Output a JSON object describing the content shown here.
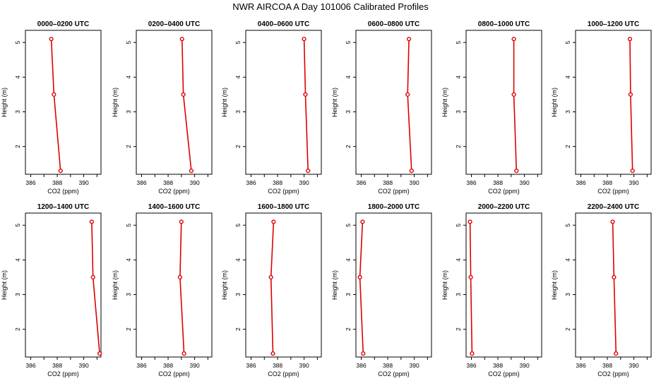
{
  "title": "NWR AIRCOA A  Day 101006  Calibrated Profiles",
  "colors": {
    "line": "#dd0000",
    "marker": "#dd0000",
    "axis": "#000000"
  },
  "chart_data": [
    {
      "type": "line",
      "title": "0000–0200 UTC",
      "xlabel": "CO2 (ppm)",
      "ylabel": "Height (m)",
      "xlim": [
        385.6,
        391.3
      ],
      "ylim": [
        1.2,
        5.35
      ],
      "xticks": [
        386,
        388,
        390
      ],
      "xtick_labels": [
        "386",
        "388",
        "390"
      ],
      "yticks": [
        2,
        3,
        4,
        5
      ],
      "ytick_labels": [
        "2",
        "3",
        "4",
        "5"
      ],
      "points": [
        {
          "height": 1.3,
          "co2": 388.25
        },
        {
          "height": 3.5,
          "co2": 387.75
        },
        {
          "height": 5.1,
          "co2": 387.55
        }
      ]
    },
    {
      "type": "line",
      "title": "0200–0400 UTC",
      "xlabel": "CO2 (ppm)",
      "ylabel": "Height (m)",
      "xlim": [
        385.6,
        391.3
      ],
      "ylim": [
        1.2,
        5.35
      ],
      "xticks": [
        386,
        388,
        390
      ],
      "xtick_labels": [
        "386",
        "388",
        "390"
      ],
      "yticks": [
        2,
        3,
        4,
        5
      ],
      "ytick_labels": [
        "2",
        "3",
        "4",
        "5"
      ],
      "points": [
        {
          "height": 1.3,
          "co2": 389.75
        },
        {
          "height": 3.5,
          "co2": 389.15
        },
        {
          "height": 5.1,
          "co2": 389.05
        }
      ]
    },
    {
      "type": "line",
      "title": "0400–0600 UTC",
      "xlabel": "CO2 (ppm)",
      "ylabel": "Height (m)",
      "xlim": [
        385.6,
        391.3
      ],
      "ylim": [
        1.2,
        5.35
      ],
      "xticks": [
        386,
        388,
        390
      ],
      "xtick_labels": [
        "386",
        "388",
        "390"
      ],
      "yticks": [
        2,
        3,
        4,
        5
      ],
      "ytick_labels": [
        "2",
        "3",
        "4",
        "5"
      ],
      "points": [
        {
          "height": 1.3,
          "co2": 390.3
        },
        {
          "height": 3.5,
          "co2": 390.1
        },
        {
          "height": 5.1,
          "co2": 390.0
        }
      ]
    },
    {
      "type": "line",
      "title": "0600–0800 UTC",
      "xlabel": "CO2 (ppm)",
      "ylabel": "Height (m)",
      "xlim": [
        385.6,
        391.3
      ],
      "ylim": [
        1.2,
        5.35
      ],
      "xticks": [
        386,
        388,
        390
      ],
      "xtick_labels": [
        "386",
        "388",
        "390"
      ],
      "yticks": [
        2,
        3,
        4,
        5
      ],
      "ytick_labels": [
        "2",
        "3",
        "4",
        "5"
      ],
      "points": [
        {
          "height": 1.3,
          "co2": 389.8
        },
        {
          "height": 3.5,
          "co2": 389.5
        },
        {
          "height": 5.1,
          "co2": 389.6
        }
      ]
    },
    {
      "type": "line",
      "title": "0800–1000 UTC",
      "xlabel": "CO2 (ppm)",
      "ylabel": "Height (m)",
      "xlim": [
        385.6,
        391.3
      ],
      "ylim": [
        1.2,
        5.35
      ],
      "xticks": [
        386,
        388,
        390
      ],
      "xtick_labels": [
        "386",
        "388",
        "390"
      ],
      "yticks": [
        2,
        3,
        4,
        5
      ],
      "ytick_labels": [
        "2",
        "3",
        "4",
        "5"
      ],
      "points": [
        {
          "height": 1.3,
          "co2": 389.4
        },
        {
          "height": 3.5,
          "co2": 389.2
        },
        {
          "height": 5.1,
          "co2": 389.2
        }
      ]
    },
    {
      "type": "line",
      "title": "1000–1200 UTC",
      "xlabel": "CO2 (ppm)",
      "ylabel": "Height (m)",
      "xlim": [
        385.6,
        391.3
      ],
      "ylim": [
        1.2,
        5.35
      ],
      "xticks": [
        386,
        388,
        390
      ],
      "xtick_labels": [
        "386",
        "388",
        "390"
      ],
      "yticks": [
        2,
        3,
        4,
        5
      ],
      "ytick_labels": [
        "2",
        "3",
        "4",
        "5"
      ],
      "points": [
        {
          "height": 1.3,
          "co2": 389.9
        },
        {
          "height": 3.5,
          "co2": 389.75
        },
        {
          "height": 5.1,
          "co2": 389.7
        }
      ]
    },
    {
      "type": "line",
      "title": "1200–1400 UTC",
      "xlabel": "CO2 (ppm)",
      "ylabel": "Height (m)",
      "xlim": [
        385.6,
        391.3
      ],
      "ylim": [
        1.2,
        5.35
      ],
      "xticks": [
        386,
        388,
        390
      ],
      "xtick_labels": [
        "386",
        "388",
        "390"
      ],
      "yticks": [
        2,
        3,
        4,
        5
      ],
      "ytick_labels": [
        "2",
        "3",
        "4",
        "5"
      ],
      "points": [
        {
          "height": 1.3,
          "co2": 391.2
        },
        {
          "height": 3.5,
          "co2": 390.7
        },
        {
          "height": 5.1,
          "co2": 390.6
        }
      ]
    },
    {
      "type": "line",
      "title": "1400–1600 UTC",
      "xlabel": "CO2 (ppm)",
      "ylabel": "Height (m)",
      "xlim": [
        385.6,
        391.3
      ],
      "ylim": [
        1.2,
        5.35
      ],
      "xticks": [
        386,
        388,
        390
      ],
      "xtick_labels": [
        "386",
        "388",
        "390"
      ],
      "yticks": [
        2,
        3,
        4,
        5
      ],
      "ytick_labels": [
        "2",
        "3",
        "4",
        "5"
      ],
      "points": [
        {
          "height": 1.3,
          "co2": 389.2
        },
        {
          "height": 3.5,
          "co2": 388.9
        },
        {
          "height": 5.1,
          "co2": 389.0
        }
      ]
    },
    {
      "type": "line",
      "title": "1600–1800 UTC",
      "xlabel": "CO2 (ppm)",
      "ylabel": "Height (m)",
      "xlim": [
        385.6,
        391.3
      ],
      "ylim": [
        1.2,
        5.35
      ],
      "xticks": [
        386,
        388,
        390
      ],
      "xtick_labels": [
        "386",
        "388",
        "390"
      ],
      "yticks": [
        2,
        3,
        4,
        5
      ],
      "ytick_labels": [
        "2",
        "3",
        "4",
        "5"
      ],
      "points": [
        {
          "height": 1.3,
          "co2": 387.65
        },
        {
          "height": 3.5,
          "co2": 387.5
        },
        {
          "height": 5.1,
          "co2": 387.7
        }
      ]
    },
    {
      "type": "line",
      "title": "1800–2000 UTC",
      "xlabel": "CO2 (ppm)",
      "ylabel": "Height (m)",
      "xlim": [
        385.6,
        391.3
      ],
      "ylim": [
        1.2,
        5.35
      ],
      "xticks": [
        386,
        388,
        390
      ],
      "xtick_labels": [
        "386",
        "388",
        "390"
      ],
      "yticks": [
        2,
        3,
        4,
        5
      ],
      "ytick_labels": [
        "2",
        "3",
        "4",
        "5"
      ],
      "points": [
        {
          "height": 1.3,
          "co2": 386.15
        },
        {
          "height": 3.5,
          "co2": 385.9
        },
        {
          "height": 5.1,
          "co2": 386.1
        }
      ]
    },
    {
      "type": "line",
      "title": "2000–2200 UTC",
      "xlabel": "CO2 (ppm)",
      "ylabel": "Height (m)",
      "xlim": [
        385.6,
        391.3
      ],
      "ylim": [
        1.2,
        5.35
      ],
      "xticks": [
        386,
        388,
        390
      ],
      "xtick_labels": [
        "386",
        "388",
        "390"
      ],
      "yticks": [
        2,
        3,
        4,
        5
      ],
      "ytick_labels": [
        "2",
        "3",
        "4",
        "5"
      ],
      "points": [
        {
          "height": 1.3,
          "co2": 386.05
        },
        {
          "height": 3.5,
          "co2": 385.95
        },
        {
          "height": 5.1,
          "co2": 385.9
        }
      ]
    },
    {
      "type": "line",
      "title": "2200–2400 UTC",
      "xlabel": "CO2 (ppm)",
      "ylabel": "Height (m)",
      "xlim": [
        385.6,
        391.3
      ],
      "ylim": [
        1.2,
        5.35
      ],
      "xticks": [
        386,
        388,
        390
      ],
      "xtick_labels": [
        "386",
        "388",
        "390"
      ],
      "yticks": [
        2,
        3,
        4,
        5
      ],
      "ytick_labels": [
        "2",
        "3",
        "4",
        "5"
      ],
      "points": [
        {
          "height": 1.3,
          "co2": 388.65
        },
        {
          "height": 3.5,
          "co2": 388.5
        },
        {
          "height": 5.1,
          "co2": 388.4
        }
      ]
    }
  ]
}
